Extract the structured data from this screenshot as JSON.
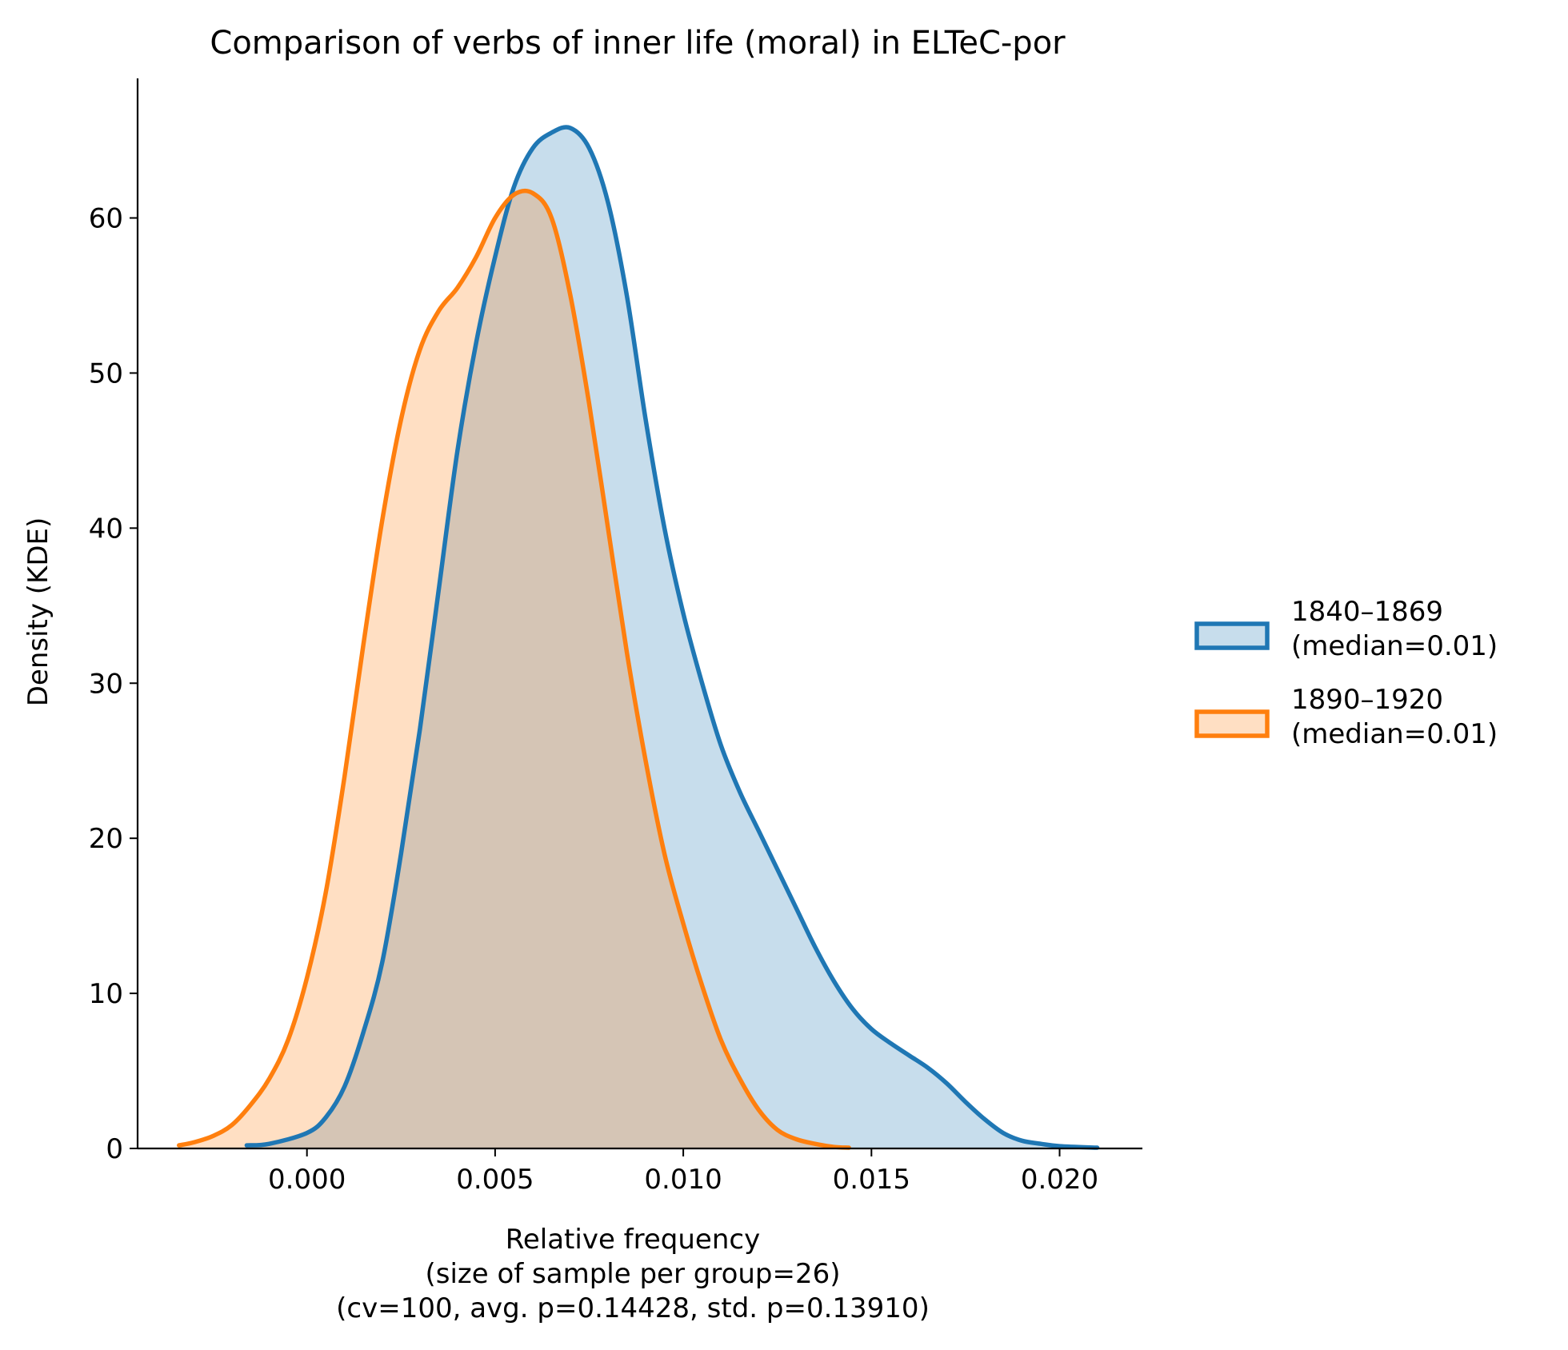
{
  "chart_data": {
    "type": "area",
    "title": "Comparison of verbs of inner life (moral) in ELTeC-por",
    "xlabel": [
      "Relative frequency",
      "(size of sample per group=26)",
      "(cv=100, avg. p=0.14428, std. p=0.13910)"
    ],
    "ylabel": "Density (KDE)",
    "xlim": [
      -0.0045,
      0.0222
    ],
    "ylim": [
      0,
      69
    ],
    "x_ticks": [
      0.0,
      0.005,
      0.01,
      0.015,
      0.02
    ],
    "x_tick_labels": [
      "0.000",
      "0.005",
      "0.010",
      "0.015",
      "0.020"
    ],
    "y_ticks": [
      0,
      10,
      20,
      30,
      40,
      50,
      60
    ],
    "y_tick_labels": [
      "0",
      "10",
      "20",
      "30",
      "40",
      "50",
      "60"
    ],
    "grid": false,
    "legend_position": "right",
    "series": [
      {
        "name": "1840–1869\n(median=0.01)",
        "color": "#1f77b4",
        "fill": "#c6dbec",
        "points": [
          [
            -0.0016,
            0.2
          ],
          [
            -0.001,
            0.3
          ],
          [
            0.0,
            1.0
          ],
          [
            0.0005,
            2.0
          ],
          [
            0.001,
            4.0
          ],
          [
            0.0015,
            7.5
          ],
          [
            0.002,
            12.0
          ],
          [
            0.0025,
            19.0
          ],
          [
            0.003,
            27.0
          ],
          [
            0.0035,
            36.0
          ],
          [
            0.004,
            45.0
          ],
          [
            0.0045,
            52.0
          ],
          [
            0.005,
            57.5
          ],
          [
            0.0055,
            62.0
          ],
          [
            0.006,
            64.5
          ],
          [
            0.0065,
            65.5
          ],
          [
            0.007,
            65.8
          ],
          [
            0.0075,
            64.5
          ],
          [
            0.008,
            61.0
          ],
          [
            0.0085,
            55.0
          ],
          [
            0.009,
            47.0
          ],
          [
            0.0095,
            40.0
          ],
          [
            0.01,
            34.5
          ],
          [
            0.0105,
            30.0
          ],
          [
            0.011,
            26.0
          ],
          [
            0.0115,
            23.0
          ],
          [
            0.012,
            20.5
          ],
          [
            0.0125,
            18.0
          ],
          [
            0.013,
            15.5
          ],
          [
            0.0135,
            13.0
          ],
          [
            0.014,
            10.8
          ],
          [
            0.0145,
            9.0
          ],
          [
            0.015,
            7.7
          ],
          [
            0.0155,
            6.8
          ],
          [
            0.016,
            6.0
          ],
          [
            0.0165,
            5.2
          ],
          [
            0.017,
            4.2
          ],
          [
            0.0175,
            3.0
          ],
          [
            0.018,
            1.9
          ],
          [
            0.0185,
            1.0
          ],
          [
            0.019,
            0.5
          ],
          [
            0.0195,
            0.3
          ],
          [
            0.02,
            0.15
          ],
          [
            0.021,
            0.05
          ]
        ]
      },
      {
        "name": "1890–1920\n(median=0.01)",
        "color": "#ff7f0e",
        "fill": "#fdd9bb",
        "points": [
          [
            -0.0034,
            0.2
          ],
          [
            -0.003,
            0.4
          ],
          [
            -0.0025,
            0.8
          ],
          [
            -0.002,
            1.5
          ],
          [
            -0.0015,
            2.8
          ],
          [
            -0.001,
            4.5
          ],
          [
            -0.0005,
            7.0
          ],
          [
            0.0,
            11.0
          ],
          [
            0.0005,
            16.5
          ],
          [
            0.001,
            24.0
          ],
          [
            0.0015,
            32.5
          ],
          [
            0.002,
            40.5
          ],
          [
            0.0025,
            47.0
          ],
          [
            0.003,
            51.5
          ],
          [
            0.0035,
            54.0
          ],
          [
            0.004,
            55.5
          ],
          [
            0.0045,
            57.5
          ],
          [
            0.005,
            60.0
          ],
          [
            0.0055,
            61.5
          ],
          [
            0.006,
            61.6
          ],
          [
            0.0065,
            60.0
          ],
          [
            0.007,
            55.0
          ],
          [
            0.0075,
            48.0
          ],
          [
            0.008,
            40.0
          ],
          [
            0.0085,
            32.0
          ],
          [
            0.009,
            25.0
          ],
          [
            0.0095,
            19.0
          ],
          [
            0.01,
            14.5
          ],
          [
            0.0105,
            10.5
          ],
          [
            0.011,
            7.0
          ],
          [
            0.0115,
            4.5
          ],
          [
            0.012,
            2.5
          ],
          [
            0.0125,
            1.2
          ],
          [
            0.013,
            0.6
          ],
          [
            0.0135,
            0.3
          ],
          [
            0.014,
            0.1
          ],
          [
            0.0144,
            0.05
          ]
        ]
      }
    ]
  }
}
